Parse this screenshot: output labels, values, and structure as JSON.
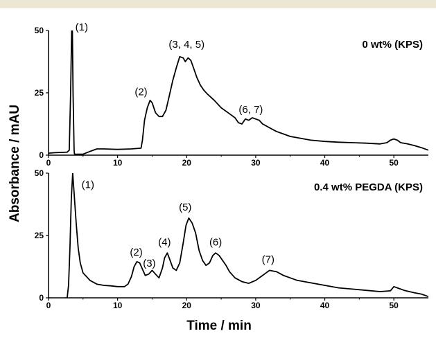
{
  "chart_data": {
    "type": "line",
    "xlabel": "Time / min",
    "ylabel": "Absorbance / mAU",
    "shared_x_ticks": [
      0,
      10,
      20,
      30,
      40,
      50
    ],
    "panels": [
      {
        "label": "0 wt% (KPS)",
        "xlim": [
          0,
          55
        ],
        "ylim": [
          0,
          50
        ],
        "y_ticks": [
          0,
          25,
          50
        ],
        "peak_labels": [
          {
            "text": "(1)",
            "x": 4.8,
            "y": 50
          },
          {
            "text": "(2)",
            "x": 13.4,
            "y": 24
          },
          {
            "text": "(3, 4, 5)",
            "x": 20.0,
            "y": 43
          },
          {
            "text": "(6, 7)",
            "x": 29.3,
            "y": 17
          }
        ],
        "series": [
          {
            "x": [
              0,
              1,
              2,
              2.7,
              3.0,
              3.2,
              3.35,
              3.45,
              3.55,
              3.7,
              3.75,
              3.8,
              4,
              5,
              6,
              7,
              8,
              10,
              12,
              13.4,
              13.6,
              13.9,
              14.3,
              14.7,
              15.0,
              15.5,
              16.0,
              16.5,
              17.0,
              17.5,
              18.0,
              18.5,
              19.0,
              19.5,
              19.8,
              20.2,
              20.6,
              21,
              21.5,
              22,
              22.5,
              23,
              24,
              25,
              26,
              27,
              27.5,
              28,
              28.5,
              29,
              29.5,
              30,
              30.5,
              31,
              32,
              33,
              34,
              35,
              36,
              37,
              38,
              40,
              42,
              44,
              46,
              48,
              49,
              49.5,
              50,
              50.5,
              51,
              52,
              53,
              54,
              55
            ],
            "y": [
              0.8,
              1.0,
              1.1,
              1.2,
              2.0,
              25,
              50,
              50,
              25,
              2.0,
              0.5,
              0.4,
              0.4,
              0.4,
              1.5,
              2.5,
              2.5,
              2.3,
              2.5,
              2.8,
              6,
              14,
              19,
              22,
              21,
              17,
              15.5,
              15.5,
              18,
              24,
              30,
              35,
              39.5,
              39,
              37.5,
              39,
              38,
              35,
              31,
              28,
              26,
              24.5,
              22,
              19,
              17,
              15,
              13,
              12.5,
              14.5,
              14,
              15,
              14.5,
              14,
              12.5,
              11,
              9.5,
              8.5,
              7.5,
              7,
              6.5,
              6,
              5.5,
              5.2,
              5,
              4.8,
              4.5,
              5,
              6,
              6.5,
              6,
              5,
              4.5,
              3.8,
              3,
              2
            ]
          }
        ]
      },
      {
        "label": "0.4 wt% PEGDA (KPS)",
        "xlim": [
          0,
          55
        ],
        "ylim": [
          0,
          50
        ],
        "y_ticks": [
          0,
          25,
          50
        ],
        "peak_labels": [
          {
            "text": "(1)",
            "x": 5.7,
            "y": 44
          },
          {
            "text": "(2)",
            "x": 12.7,
            "y": 17
          },
          {
            "text": "(3)",
            "x": 14.6,
            "y": 12.5
          },
          {
            "text": "(4)",
            "x": 16.8,
            "y": 21
          },
          {
            "text": "(5)",
            "x": 19.8,
            "y": 35
          },
          {
            "text": "(6)",
            "x": 24.2,
            "y": 21
          },
          {
            "text": "(7)",
            "x": 31.8,
            "y": 14
          }
        ],
        "series": [
          {
            "x": [
              0,
              1,
              2,
              2.7,
              2.9,
              3.1,
              3.3,
              3.5,
              3.7,
              4.0,
              4.3,
              4.6,
              5.0,
              5.5,
              6,
              7,
              8,
              9,
              10,
              11,
              11.5,
              12.0,
              12.4,
              12.8,
              13.2,
              13.6,
              14.0,
              14.5,
              15.0,
              15.5,
              16.0,
              16.5,
              16.8,
              17.2,
              17.6,
              18.0,
              18.5,
              19.0,
              19.5,
              19.9,
              20.3,
              20.8,
              21.3,
              21.8,
              22.3,
              22.8,
              23.3,
              23.8,
              24.2,
              24.7,
              25.2,
              25.7,
              26.2,
              27,
              28,
              29,
              30,
              31,
              32,
              33,
              34,
              35,
              36,
              38,
              40,
              42,
              44,
              46,
              48,
              49.5,
              50,
              50.5,
              51.5,
              53,
              54,
              55
            ],
            "y": [
              0,
              -0.3,
              -0.2,
              0,
              5,
              20,
              40,
              50,
              42,
              30,
              20,
              14,
              10,
              8.5,
              7,
              5.5,
              5,
              4.8,
              4.5,
              4.5,
              5.5,
              8.5,
              12.5,
              14.5,
              14,
              11.5,
              9,
              9.5,
              11,
              9.5,
              8,
              12,
              16,
              18,
              15,
              12,
              11,
              14,
              22,
              29,
              32,
              30,
              26,
              19,
              15,
              13,
              14,
              17,
              18,
              17,
              15,
              13,
              10.5,
              8,
              6.5,
              5.8,
              7,
              9,
              11,
              10.5,
              9,
              8,
              7,
              6,
              5,
              4,
              3.5,
              3,
              2.5,
              2.8,
              4.5,
              4,
              3,
              2,
              1.5,
              0.5
            ]
          }
        ]
      }
    ]
  }
}
